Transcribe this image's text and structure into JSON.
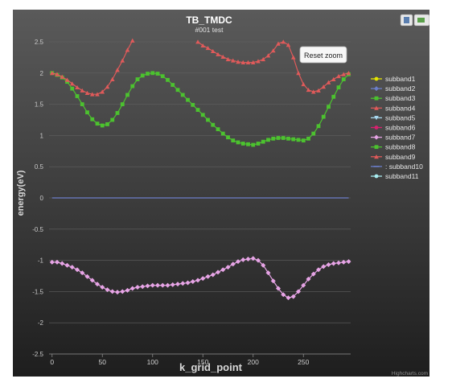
{
  "chart_data": {
    "type": "line",
    "title": "TB_TMDC",
    "subtitle": "#001 test",
    "xlabel": "k_grid_point",
    "ylabel": "energy(eV)",
    "xlim": [
      -3,
      297
    ],
    "ylim": [
      -2.5,
      2.5
    ],
    "x_ticks": [
      0,
      50,
      100,
      150,
      200,
      250
    ],
    "y_ticks": [
      2.5,
      2,
      1.5,
      1,
      0.5,
      0,
      -0.5,
      -1,
      -1.5,
      -2,
      -2.5
    ],
    "grid": "horizontal",
    "legend_position": "right",
    "reset_zoom_label": "Reset zoom",
    "credits": "Highcharts.com",
    "series": [
      {
        "name": "subband1",
        "color": "#e6e600",
        "marker": "circle",
        "points": []
      },
      {
        "name": "subband2",
        "color": "#6b7ec9",
        "marker": "diamond",
        "points": []
      },
      {
        "name": "subband3",
        "color": "#4cc22f",
        "marker": "square",
        "points": [
          [
            0,
            2.0
          ],
          [
            5,
            1.97
          ],
          [
            10,
            1.93
          ],
          [
            15,
            1.86
          ],
          [
            20,
            1.75
          ],
          [
            25,
            1.63
          ],
          [
            30,
            1.5
          ],
          [
            35,
            1.37
          ],
          [
            40,
            1.26
          ],
          [
            45,
            1.19
          ],
          [
            50,
            1.16
          ],
          [
            55,
            1.18
          ],
          [
            60,
            1.25
          ],
          [
            65,
            1.36
          ],
          [
            70,
            1.5
          ],
          [
            75,
            1.65
          ],
          [
            80,
            1.79
          ],
          [
            85,
            1.9
          ],
          [
            90,
            1.96
          ],
          [
            95,
            1.99
          ],
          [
            100,
            2.0
          ],
          [
            105,
            1.99
          ],
          [
            110,
            1.95
          ],
          [
            115,
            1.89
          ],
          [
            120,
            1.81
          ],
          [
            125,
            1.73
          ],
          [
            130,
            1.65
          ],
          [
            135,
            1.57
          ],
          [
            140,
            1.49
          ],
          [
            145,
            1.41
          ],
          [
            150,
            1.33
          ],
          [
            155,
            1.25
          ],
          [
            160,
            1.17
          ],
          [
            165,
            1.1
          ],
          [
            170,
            1.03
          ],
          [
            175,
            0.97
          ],
          [
            180,
            0.92
          ],
          [
            185,
            0.89
          ],
          [
            190,
            0.87
          ],
          [
            195,
            0.86
          ],
          [
            200,
            0.85
          ],
          [
            205,
            0.87
          ],
          [
            210,
            0.9
          ],
          [
            215,
            0.93
          ],
          [
            220,
            0.95
          ],
          [
            225,
            0.96
          ],
          [
            230,
            0.96
          ],
          [
            235,
            0.95
          ],
          [
            240,
            0.94
          ],
          [
            245,
            0.93
          ],
          [
            250,
            0.92
          ],
          [
            255,
            0.95
          ],
          [
            260,
            1.03
          ],
          [
            265,
            1.15
          ],
          [
            270,
            1.3
          ],
          [
            275,
            1.46
          ],
          [
            280,
            1.62
          ],
          [
            285,
            1.77
          ],
          [
            290,
            1.9
          ],
          [
            295,
            1.98
          ]
        ]
      },
      {
        "name": "subband4",
        "color": "#e05a5a",
        "marker": "triangle",
        "points": [
          [
            0,
            2.0
          ],
          [
            5,
            1.98
          ],
          [
            10,
            1.94
          ],
          [
            15,
            1.89
          ],
          [
            20,
            1.83
          ],
          [
            25,
            1.77
          ],
          [
            30,
            1.72
          ],
          [
            35,
            1.68
          ],
          [
            40,
            1.66
          ],
          [
            45,
            1.66
          ],
          [
            50,
            1.7
          ],
          [
            55,
            1.78
          ],
          [
            60,
            1.9
          ],
          [
            65,
            2.05
          ],
          [
            70,
            2.2
          ],
          [
            75,
            2.37
          ],
          [
            80,
            2.52
          ]
        ]
      },
      {
        "name": "subband5",
        "color": "#a8d8f0",
        "marker": "triangle-down",
        "points": []
      },
      {
        "name": "subband6",
        "color": "#d9216f",
        "marker": "circle",
        "points": []
      },
      {
        "name": "subband7",
        "color": "#e7a4e6",
        "marker": "diamond",
        "points": [
          [
            0,
            -1.03
          ],
          [
            5,
            -1.03
          ],
          [
            10,
            -1.05
          ],
          [
            15,
            -1.08
          ],
          [
            20,
            -1.11
          ],
          [
            25,
            -1.15
          ],
          [
            30,
            -1.2
          ],
          [
            35,
            -1.26
          ],
          [
            40,
            -1.32
          ],
          [
            45,
            -1.38
          ],
          [
            50,
            -1.43
          ],
          [
            55,
            -1.47
          ],
          [
            60,
            -1.5
          ],
          [
            65,
            -1.51
          ],
          [
            70,
            -1.5
          ],
          [
            75,
            -1.48
          ],
          [
            80,
            -1.45
          ],
          [
            85,
            -1.43
          ],
          [
            90,
            -1.42
          ],
          [
            95,
            -1.41
          ],
          [
            100,
            -1.4
          ],
          [
            105,
            -1.4
          ],
          [
            110,
            -1.4
          ],
          [
            115,
            -1.4
          ],
          [
            120,
            -1.39
          ],
          [
            125,
            -1.38
          ],
          [
            130,
            -1.37
          ],
          [
            135,
            -1.36
          ],
          [
            140,
            -1.34
          ],
          [
            145,
            -1.32
          ],
          [
            150,
            -1.29
          ],
          [
            155,
            -1.26
          ],
          [
            160,
            -1.23
          ],
          [
            165,
            -1.19
          ],
          [
            170,
            -1.15
          ],
          [
            175,
            -1.11
          ],
          [
            180,
            -1.06
          ],
          [
            185,
            -1.02
          ],
          [
            190,
            -0.99
          ],
          [
            195,
            -0.98
          ],
          [
            200,
            -0.97
          ],
          [
            205,
            -1.0
          ],
          [
            210,
            -1.08
          ],
          [
            215,
            -1.2
          ],
          [
            220,
            -1.33
          ],
          [
            225,
            -1.45
          ],
          [
            230,
            -1.55
          ],
          [
            235,
            -1.6
          ],
          [
            240,
            -1.58
          ],
          [
            245,
            -1.5
          ],
          [
            250,
            -1.4
          ],
          [
            255,
            -1.3
          ],
          [
            260,
            -1.22
          ],
          [
            265,
            -1.15
          ],
          [
            270,
            -1.1
          ],
          [
            275,
            -1.07
          ],
          [
            280,
            -1.05
          ],
          [
            285,
            -1.04
          ],
          [
            290,
            -1.03
          ],
          [
            295,
            -1.02
          ]
        ]
      },
      {
        "name": "subband8",
        "color": "#4cc22f",
        "marker": "square",
        "points": []
      },
      {
        "name": "subband9",
        "color": "#e05a5a",
        "marker": "triangle",
        "points": [
          [
            145,
            2.5
          ],
          [
            150,
            2.44
          ],
          [
            155,
            2.4
          ],
          [
            160,
            2.35
          ],
          [
            165,
            2.3
          ],
          [
            170,
            2.26
          ],
          [
            175,
            2.22
          ],
          [
            180,
            2.2
          ],
          [
            185,
            2.18
          ],
          [
            190,
            2.17
          ],
          [
            195,
            2.17
          ],
          [
            200,
            2.17
          ],
          [
            205,
            2.19
          ],
          [
            210,
            2.22
          ],
          [
            215,
            2.28
          ],
          [
            220,
            2.36
          ],
          [
            225,
            2.47
          ],
          [
            230,
            2.5
          ],
          [
            235,
            2.45
          ],
          [
            240,
            2.25
          ],
          [
            245,
            2.0
          ],
          [
            250,
            1.82
          ],
          [
            255,
            1.73
          ],
          [
            260,
            1.7
          ],
          [
            265,
            1.72
          ],
          [
            270,
            1.78
          ],
          [
            275,
            1.85
          ],
          [
            280,
            1.9
          ],
          [
            285,
            1.95
          ],
          [
            290,
            1.98
          ],
          [
            295,
            2.0
          ]
        ]
      },
      {
        "name": "subband10",
        "color": "#6b7ec9",
        "marker": "line",
        "points": [
          [
            0,
            0.0
          ],
          [
            295,
            0.0
          ]
        ]
      },
      {
        "name": "subband11",
        "color": "#a8ecf0",
        "marker": "circle",
        "points": []
      }
    ]
  },
  "legend_labels": [
    "subband1",
    "subband2",
    "subband3",
    "subband4",
    "subband5",
    "subband6",
    "subband7",
    "subband8",
    "subband9",
    ": subband10",
    "subband11"
  ]
}
